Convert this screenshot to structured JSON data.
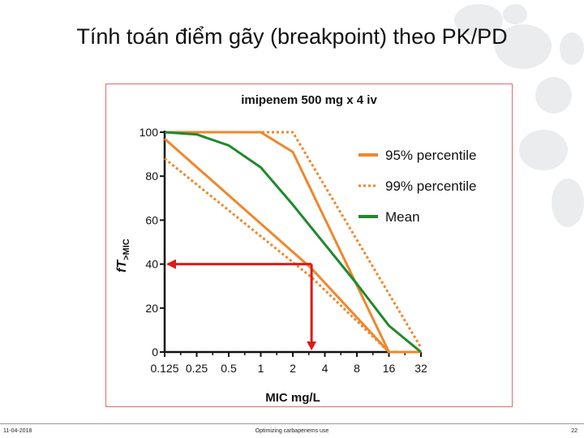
{
  "slide": {
    "title": "Tính toán điểm gãy (breakpoint) theo PK/PD",
    "footer_left": "11-04-2018",
    "footer_center": "Optimizing carbapenems use",
    "footer_right": "22"
  },
  "colors": {
    "orange": "#f0862a",
    "green": "#1e8a2a",
    "red": "#e01818",
    "frame": "#e06a6a"
  },
  "chart_data": {
    "type": "line",
    "title": "imipenem 500 mg x 4 iv",
    "xlabel": "MIC mg/L",
    "ylabel_main": "fT",
    "ylabel_sub": ">MIC",
    "x_scale": "log2",
    "x_ticks": [
      "0.125",
      "0.25",
      "0.5",
      "1",
      "2",
      "4",
      "8",
      "16",
      "32"
    ],
    "x_tick_values": [
      0.125,
      0.25,
      0.5,
      1,
      2,
      4,
      8,
      16,
      32
    ],
    "y_ticks": [
      "0",
      "20",
      "40",
      "60",
      "80",
      "100"
    ],
    "y_tick_values": [
      0,
      20,
      40,
      60,
      80,
      100
    ],
    "ylim": [
      0,
      100
    ],
    "legend_position": "top-right",
    "series": [
      {
        "name": "95% percentile",
        "style": "solid",
        "color": "orange",
        "x": [
          0.125,
          1,
          2,
          16,
          32
        ],
        "y": [
          100,
          100,
          91,
          0,
          0
        ]
      },
      {
        "name": "95% percentile",
        "style": "solid",
        "color": "orange",
        "x": [
          0.125,
          3,
          16
        ],
        "y": [
          97,
          38,
          0
        ]
      },
      {
        "name": "99% percentile",
        "style": "dotted",
        "color": "orange",
        "x": [
          0.125,
          2,
          32
        ],
        "y": [
          100,
          100,
          2
        ]
      },
      {
        "name": "99% percentile",
        "style": "dotted",
        "color": "orange",
        "x": [
          0.125,
          3,
          16
        ],
        "y": [
          88,
          34,
          0
        ]
      },
      {
        "name": "Mean",
        "style": "solid",
        "color": "green",
        "x": [
          0.125,
          0.25,
          0.5,
          1,
          2,
          4,
          8,
          16,
          32
        ],
        "y": [
          100,
          99,
          94,
          84,
          67,
          49,
          31,
          12,
          0
        ]
      }
    ],
    "legend": [
      {
        "name": "95% percentile",
        "style": "solid",
        "color": "orange"
      },
      {
        "name": "99% percentile",
        "style": "dotted",
        "color": "orange"
      },
      {
        "name": "Mean",
        "style": "solid",
        "color": "green"
      }
    ],
    "annotation": {
      "color": "red",
      "y": 40,
      "x": 3
    }
  }
}
